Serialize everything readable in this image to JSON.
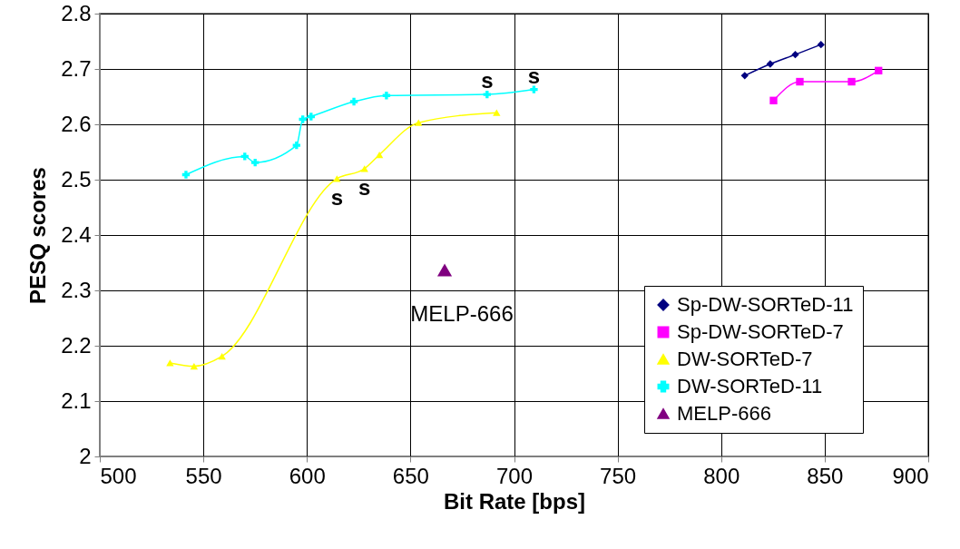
{
  "chart_data": {
    "type": "line",
    "xlabel": "Bit Rate [bps]",
    "ylabel": "PESQ scores",
    "xlim": [
      500,
      900
    ],
    "xticks": [
      500,
      550,
      600,
      650,
      700,
      750,
      800,
      850,
      900
    ],
    "ylim": [
      2,
      2.8
    ],
    "yticks": [
      2,
      2.1,
      2.2,
      2.3,
      2.4,
      2.5,
      2.6,
      2.7,
      2.8
    ],
    "grid": true,
    "legend": "bottom right",
    "series": [
      {
        "name": "Sp-DW-SORTeD-11",
        "color": "#000080",
        "marker": "diamond",
        "x": [
          811.4,
          823.7,
          835.8,
          848.2
        ],
        "values": [
          2.688,
          2.709,
          2.726,
          2.744
        ]
      },
      {
        "name": "Sp-DW-SORTeD-7",
        "color": "#ff00ff",
        "marker": "square",
        "x": [
          825.3,
          838,
          863,
          876
        ],
        "values": [
          2.643,
          2.677,
          2.677,
          2.697
        ]
      },
      {
        "name": "DW-SORTeD-7",
        "color": "#ffff00",
        "marker": "triangle",
        "x": [
          533.9,
          545.5,
          559,
          614.5,
          627.8,
          635,
          653.9,
          691.6
        ],
        "values": [
          2.169,
          2.163,
          2.181,
          2.502,
          2.52,
          2.545,
          2.603,
          2.621
        ]
      },
      {
        "name": "DW-SORTeD-11",
        "color": "#00ffff",
        "marker": "cross",
        "x": [
          541.6,
          570,
          575,
          595,
          598,
          602,
          622.7,
          638.4,
          687,
          709.6
        ],
        "values": [
          2.509,
          2.542,
          2.531,
          2.562,
          2.609,
          2.614,
          2.641,
          2.652,
          2.654,
          2.663
        ]
      },
      {
        "name": "MELP-666",
        "color": "#800080",
        "type": "scatter",
        "marker": "triangle",
        "x": [
          666.5
        ],
        "values": [
          2.337
        ]
      }
    ],
    "annotations": [
      {
        "text": "s",
        "x": 614.5,
        "y": 2.502
      },
      {
        "text": "s",
        "x": 627.8,
        "y": 2.52
      },
      {
        "text": "s",
        "x": 687,
        "y": 2.654
      },
      {
        "text": "s",
        "x": 709.6,
        "y": 2.663
      },
      {
        "text": "MELP-666",
        "x": 666.5,
        "y": 2.337
      }
    ]
  }
}
